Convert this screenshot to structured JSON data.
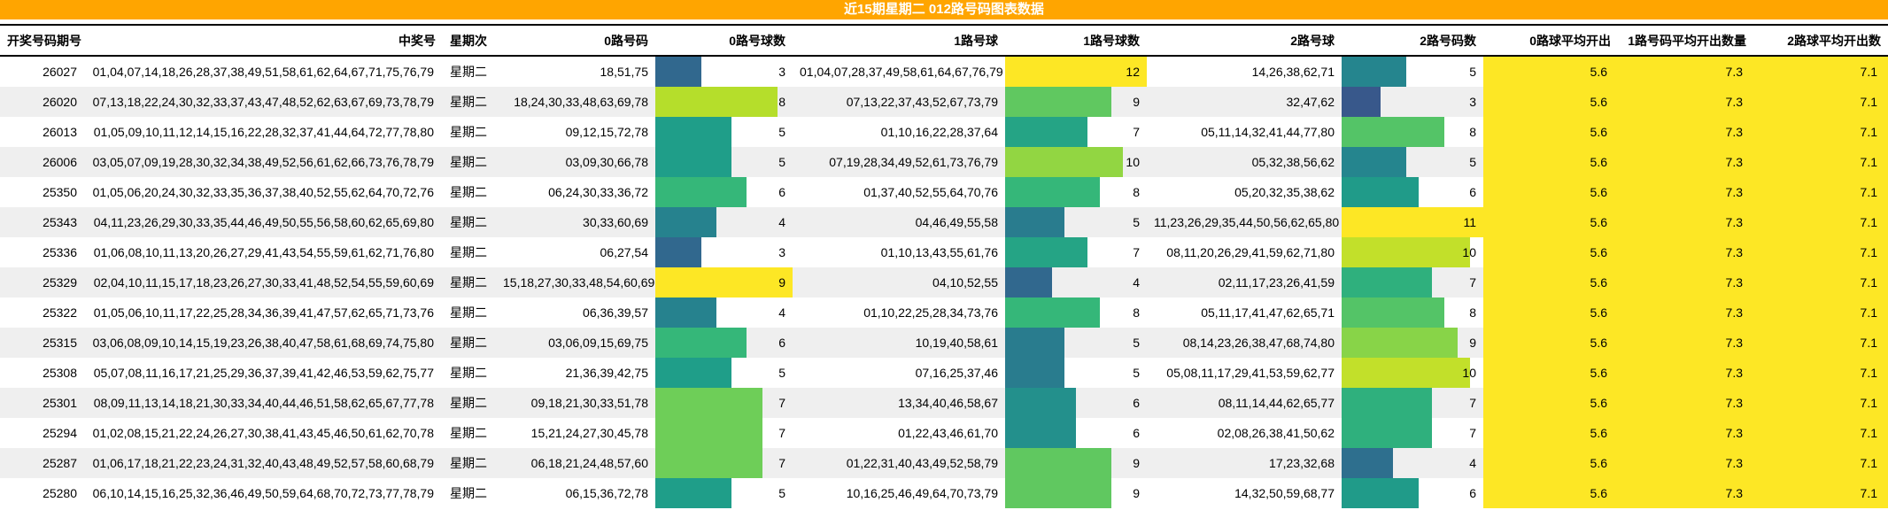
{
  "title": "近15期星期二 012路号码图表数据",
  "colors": {
    "title_bg": "#ffa500",
    "title_text": "#ffffff",
    "stripe": "#efefef",
    "avg_bg": "#fde725",
    "border": "#000000",
    "bar_color_scale": [
      "#440154",
      "#482878",
      "#3e4a89",
      "#31688e",
      "#26828e",
      "#1f9e89",
      "#35b779",
      "#6ece58",
      "#b5de2b",
      "#fde725"
    ]
  },
  "columns": {
    "period": "开奖号码期号",
    "winning": "中奖号",
    "week": "星期次",
    "road0_numbers": "0路号码",
    "road0_count": "0路号球数",
    "road1_numbers": "1路号球",
    "road1_count": "1路号球数",
    "road2_numbers": "2路号球",
    "road2_count": "2路号码数",
    "avg0": "0路球平均开出",
    "avg1": "1路号码平均开出数量",
    "avg2": "2路球平均开出数"
  },
  "averages": {
    "a0": "5.6",
    "a1": "7.3",
    "a2": "7.1"
  },
  "rows": [
    {
      "period": "26027",
      "winning": "01,04,07,14,18,26,28,37,38,49,51,58,61,62,64,67,71,75,76,79",
      "week": "星期二",
      "r0": "18,51,75",
      "c0": 3,
      "r1": "01,04,07,28,37,49,58,61,64,67,76,79",
      "c1": 12,
      "r2": "14,26,38,62,71",
      "c2": 5
    },
    {
      "period": "26020",
      "winning": "07,13,18,22,24,30,32,33,37,43,47,48,52,62,63,67,69,73,78,79",
      "week": "星期二",
      "r0": "18,24,30,33,48,63,69,78",
      "c0": 8,
      "r1": "07,13,22,37,43,52,67,73,79",
      "c1": 9,
      "r2": "32,47,62",
      "c2": 3
    },
    {
      "period": "26013",
      "winning": "01,05,09,10,11,12,14,15,16,22,28,32,37,41,44,64,72,77,78,80",
      "week": "星期二",
      "r0": "09,12,15,72,78",
      "c0": 5,
      "r1": "01,10,16,22,28,37,64",
      "c1": 7,
      "r2": "05,11,14,32,41,44,77,80",
      "c2": 8
    },
    {
      "period": "26006",
      "winning": "03,05,07,09,19,28,30,32,34,38,49,52,56,61,62,66,73,76,78,79",
      "week": "星期二",
      "r0": "03,09,30,66,78",
      "c0": 5,
      "r1": "07,19,28,34,49,52,61,73,76,79",
      "c1": 10,
      "r2": "05,32,38,56,62",
      "c2": 5
    },
    {
      "period": "25350",
      "winning": "01,05,06,20,24,30,32,33,35,36,37,38,40,52,55,62,64,70,72,76",
      "week": "星期二",
      "r0": "06,24,30,33,36,72",
      "c0": 6,
      "r1": "01,37,40,52,55,64,70,76",
      "c1": 8,
      "r2": "05,20,32,35,38,62",
      "c2": 6
    },
    {
      "period": "25343",
      "winning": "04,11,23,26,29,30,33,35,44,46,49,50,55,56,58,60,62,65,69,80",
      "week": "星期二",
      "r0": "30,33,60,69",
      "c0": 4,
      "r1": "04,46,49,55,58",
      "c1": 5,
      "r2": "11,23,26,29,35,44,50,56,62,65,80",
      "c2": 11
    },
    {
      "period": "25336",
      "winning": "01,06,08,10,11,13,20,26,27,29,41,43,54,55,59,61,62,71,76,80",
      "week": "星期二",
      "r0": "06,27,54",
      "c0": 3,
      "r1": "01,10,13,43,55,61,76",
      "c1": 7,
      "r2": "08,11,20,26,29,41,59,62,71,80",
      "c2": 10
    },
    {
      "period": "25329",
      "winning": "02,04,10,11,15,17,18,23,26,27,30,33,41,48,52,54,55,59,60,69",
      "week": "星期二",
      "r0": "15,18,27,30,33,48,54,60,69",
      "c0": 9,
      "r1": "04,10,52,55",
      "c1": 4,
      "r2": "02,11,17,23,26,41,59",
      "c2": 7
    },
    {
      "period": "25322",
      "winning": "01,05,06,10,11,17,22,25,28,34,36,39,41,47,57,62,65,71,73,76",
      "week": "星期二",
      "r0": "06,36,39,57",
      "c0": 4,
      "r1": "01,10,22,25,28,34,73,76",
      "c1": 8,
      "r2": "05,11,17,41,47,62,65,71",
      "c2": 8
    },
    {
      "period": "25315",
      "winning": "03,06,08,09,10,14,15,19,23,26,38,40,47,58,61,68,69,74,75,80",
      "week": "星期二",
      "r0": "03,06,09,15,69,75",
      "c0": 6,
      "r1": "10,19,40,58,61",
      "c1": 5,
      "r2": "08,14,23,26,38,47,68,74,80",
      "c2": 9
    },
    {
      "period": "25308",
      "winning": "05,07,08,11,16,17,21,25,29,36,37,39,41,42,46,53,59,62,75,77",
      "week": "星期二",
      "r0": "21,36,39,42,75",
      "c0": 5,
      "r1": "07,16,25,37,46",
      "c1": 5,
      "r2": "05,08,11,17,29,41,53,59,62,77",
      "c2": 10
    },
    {
      "period": "25301",
      "winning": "08,09,11,13,14,18,21,30,33,34,40,44,46,51,58,62,65,67,77,78",
      "week": "星期二",
      "r0": "09,18,21,30,33,51,78",
      "c0": 7,
      "r1": "13,34,40,46,58,67",
      "c1": 6,
      "r2": "08,11,14,44,62,65,77",
      "c2": 7
    },
    {
      "period": "25294",
      "winning": "01,02,08,15,21,22,24,26,27,30,38,41,43,45,46,50,61,62,70,78",
      "week": "星期二",
      "r0": "15,21,24,27,30,45,78",
      "c0": 7,
      "r1": "01,22,43,46,61,70",
      "c1": 6,
      "r2": "02,08,26,38,41,50,62",
      "c2": 7
    },
    {
      "period": "25287",
      "winning": "01,06,17,18,21,22,23,24,31,32,40,43,48,49,52,57,58,60,68,79",
      "week": "星期二",
      "r0": "06,18,21,24,48,57,60",
      "c0": 7,
      "r1": "01,22,31,40,43,49,52,58,79",
      "c1": 9,
      "r2": "17,23,32,68",
      "c2": 4
    },
    {
      "period": "25280",
      "winning": "06,10,14,15,16,25,32,36,46,49,50,59,64,68,70,72,73,77,78,79",
      "week": "星期二",
      "r0": "06,15,36,72,78",
      "c0": 5,
      "r1": "10,16,25,46,49,64,70,73,79",
      "c1": 9,
      "r2": "14,32,50,59,68,77",
      "c2": 6
    }
  ],
  "chart_data": {
    "type": "table",
    "title": "近15期星期二 012路号码图表数据",
    "columns": [
      "开奖号码期号",
      "中奖号",
      "星期次",
      "0路号码",
      "0路号球数",
      "1路号球",
      "1路号球数",
      "2路号球",
      "2路号码数",
      "0路球平均开出",
      "1路号码平均开出数量",
      "2路球平均开出数"
    ],
    "categories": [
      "26027",
      "26020",
      "26013",
      "26006",
      "25350",
      "25343",
      "25336",
      "25329",
      "25322",
      "25315",
      "25308",
      "25301",
      "25294",
      "25287",
      "25280"
    ],
    "bar_series": [
      {
        "name": "0路号球数",
        "values": [
          3,
          8,
          5,
          5,
          6,
          4,
          3,
          9,
          4,
          6,
          5,
          7,
          7,
          7,
          5
        ],
        "max": 9
      },
      {
        "name": "1路号球数",
        "values": [
          12,
          9,
          7,
          10,
          8,
          5,
          7,
          4,
          8,
          5,
          5,
          6,
          6,
          9,
          9
        ],
        "max": 12
      },
      {
        "name": "2路号码数",
        "values": [
          5,
          3,
          8,
          5,
          6,
          11,
          10,
          7,
          8,
          9,
          10,
          7,
          7,
          4,
          6
        ],
        "max": 11
      }
    ],
    "averages": {
      "0路球平均开出": 5.6,
      "1路号码平均开出数量": 7.3,
      "2路球平均开出数": 7.1
    },
    "color_scale": "viridis",
    "bar_scaling": "width = value / column_max",
    "legend": "none",
    "grid": "row stripes"
  }
}
